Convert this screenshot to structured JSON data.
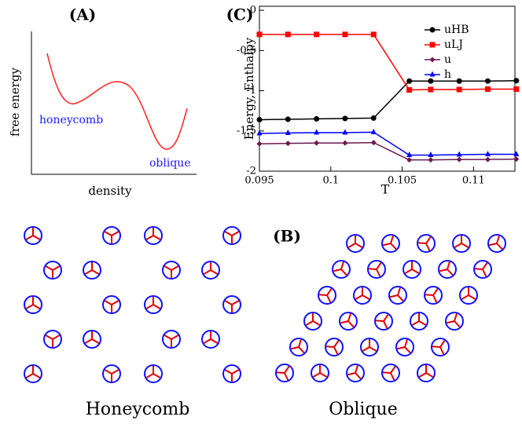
{
  "panel_a": {
    "label": "(A)",
    "ylabel": "free energy",
    "xlabel": "density",
    "annotations": [
      "honeycomb",
      "oblique"
    ]
  },
  "panel_b": {
    "label": "(B)",
    "captions": [
      "Honeycomb",
      "Oblique"
    ]
  },
  "chart_data": {
    "type": "line",
    "label": "(C)",
    "xlabel": "T",
    "ylabel": "Energy, Enthalpy",
    "x": [
      0.095,
      0.097,
      0.099,
      0.101,
      0.103,
      0.1055,
      0.107,
      0.109,
      0.111,
      0.113
    ],
    "series": [
      {
        "name": "uHB",
        "color": "#000000",
        "marker": "circle",
        "values": [
          -1.36,
          -1.355,
          -1.35,
          -1.345,
          -1.34,
          -0.88,
          -0.88,
          -0.88,
          -0.88,
          -0.875
        ]
      },
      {
        "name": "uLJ",
        "color": "#ff0000",
        "marker": "square",
        "values": [
          -0.3,
          -0.3,
          -0.3,
          -0.3,
          -0.3,
          -0.99,
          -0.985,
          -0.985,
          -0.98,
          -0.98
        ]
      },
      {
        "name": "u",
        "color": "#6b1a4f",
        "marker": "diamond",
        "values": [
          -1.66,
          -1.655,
          -1.65,
          -1.65,
          -1.645,
          -1.86,
          -1.86,
          -1.855,
          -1.855,
          -1.85
        ]
      },
      {
        "name": "h",
        "color": "#0000ff",
        "marker": "triangle",
        "values": [
          -1.53,
          -1.525,
          -1.52,
          -1.52,
          -1.515,
          -1.8,
          -1.8,
          -1.795,
          -1.79,
          -1.79
        ]
      }
    ],
    "xlim": [
      0.095,
      0.1129
    ],
    "ylim": [
      -2,
      0.05
    ],
    "xticks": [
      0.095,
      0.1,
      0.105,
      0.11
    ],
    "yticks": [
      0,
      -0.5,
      -1,
      -1.5,
      -2
    ]
  }
}
